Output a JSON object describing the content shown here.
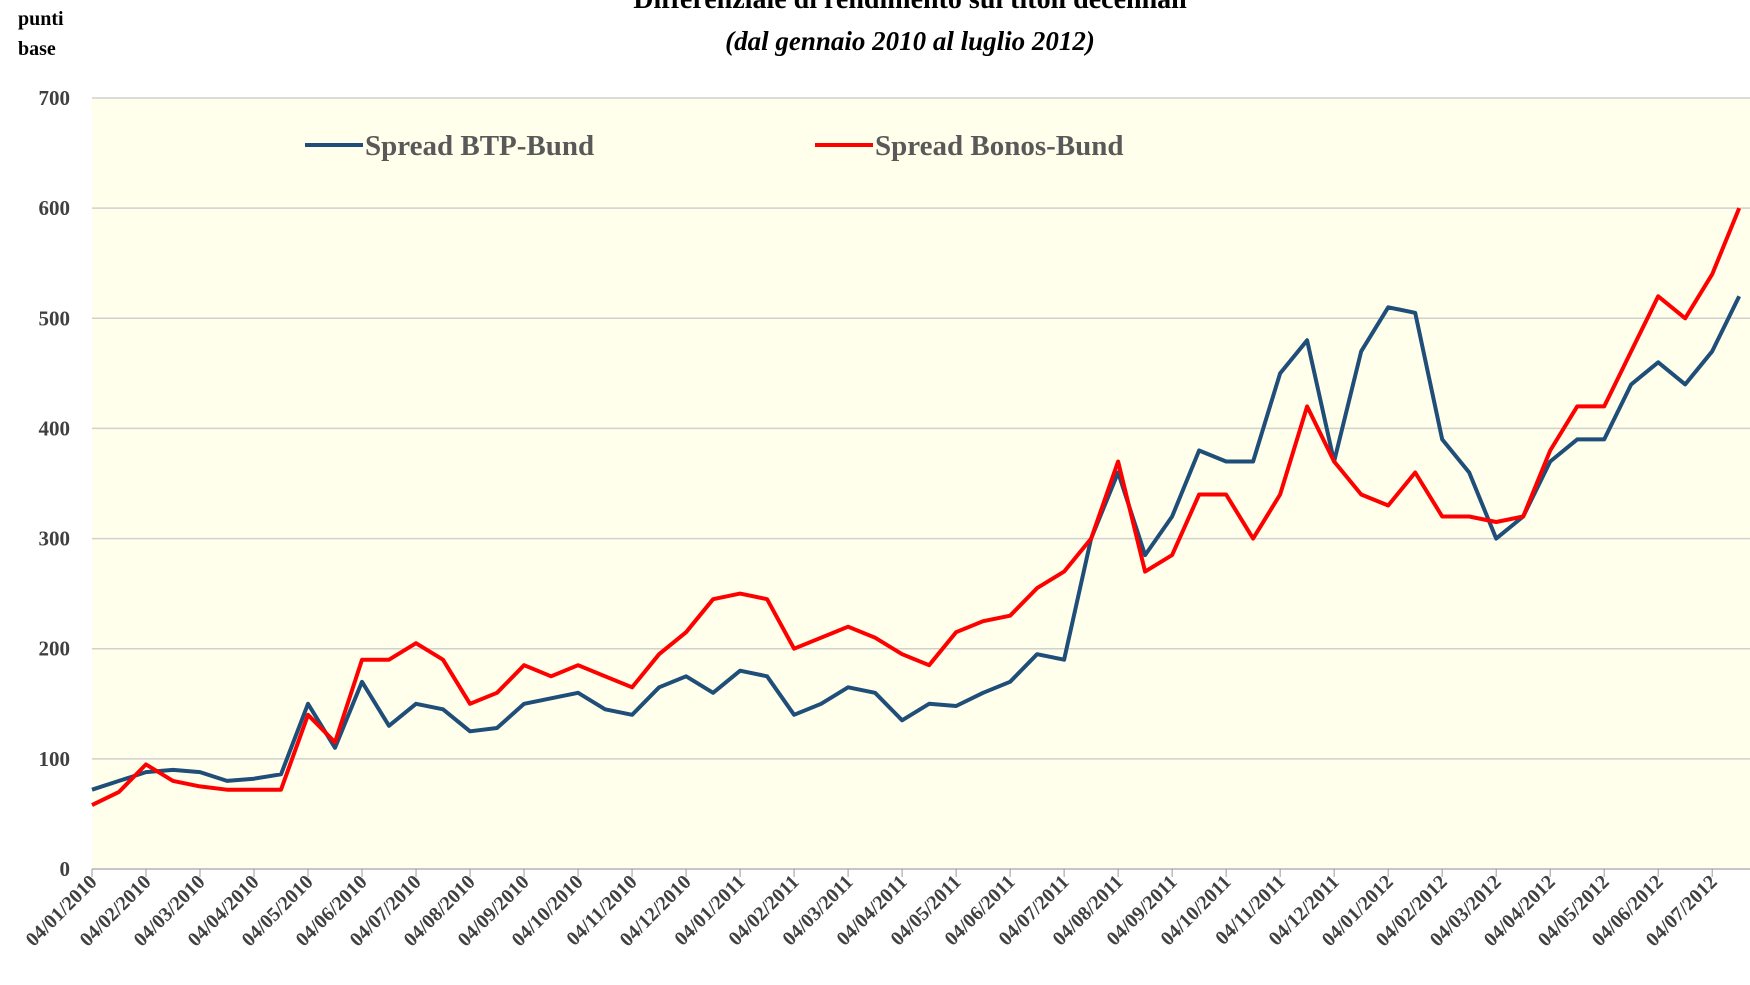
{
  "chart_data": {
    "type": "line",
    "title": "Differenziale di rendimento sui titoli decennali",
    "subtitle": "(dal gennaio 2010 al luglio 2012)",
    "ylabel": "punti base",
    "categories": [
      "04/01/2010",
      null,
      "04/02/2010",
      null,
      "04/03/2010",
      null,
      "04/04/2010",
      null,
      "04/05/2010",
      null,
      "04/06/2010",
      null,
      "04/07/2010",
      null,
      "04/08/2010",
      null,
      "04/09/2010",
      null,
      "04/10/2010",
      null,
      "04/11/2010",
      null,
      "04/12/2010",
      null,
      "04/01/2011",
      null,
      "04/02/2011",
      null,
      "04/03/2011",
      null,
      "04/04/2011",
      null,
      "04/05/2011",
      null,
      "04/06/2011",
      null,
      "04/07/2011",
      null,
      "04/08/2011",
      null,
      "04/09/2011",
      null,
      "04/10/2011",
      null,
      "04/11/2011",
      null,
      "04/12/2011",
      null,
      "04/01/2012",
      null,
      "04/02/2012",
      null,
      "04/03/2012",
      null,
      "04/04/2012",
      null,
      "04/05/2012",
      null,
      "04/06/2012",
      null,
      "04/07/2012",
      null
    ],
    "series": [
      {
        "name": "Spread BTP-Bund",
        "color": "#1f4e79",
        "values": [
          72,
          80,
          88,
          90,
          88,
          80,
          82,
          86,
          150,
          110,
          170,
          130,
          150,
          145,
          125,
          128,
          150,
          155,
          160,
          145,
          140,
          165,
          175,
          160,
          180,
          175,
          140,
          150,
          165,
          160,
          135,
          150,
          148,
          160,
          170,
          195,
          190,
          300,
          360,
          285,
          320,
          380,
          370,
          370,
          450,
          480,
          370,
          470,
          510,
          505,
          390,
          360,
          300,
          320,
          370,
          390,
          390,
          440,
          460,
          440,
          470,
          520
        ]
      },
      {
        "name": "Spread Bonos-Bund",
        "color": "#ff0000",
        "values": [
          58,
          70,
          95,
          80,
          75,
          72,
          72,
          72,
          140,
          115,
          190,
          190,
          205,
          190,
          150,
          160,
          185,
          175,
          185,
          175,
          165,
          195,
          215,
          245,
          250,
          245,
          200,
          210,
          220,
          210,
          195,
          185,
          215,
          225,
          230,
          255,
          270,
          300,
          370,
          270,
          285,
          340,
          340,
          300,
          340,
          420,
          370,
          340,
          330,
          360,
          320,
          320,
          315,
          320,
          380,
          420,
          420,
          470,
          520,
          500,
          540,
          600
        ]
      }
    ],
    "ylim": [
      0,
      700
    ],
    "yticks": [
      0,
      100,
      200,
      300,
      400,
      500,
      600,
      700
    ],
    "grid": true,
    "legend": "top",
    "background": "#ffffeb"
  }
}
